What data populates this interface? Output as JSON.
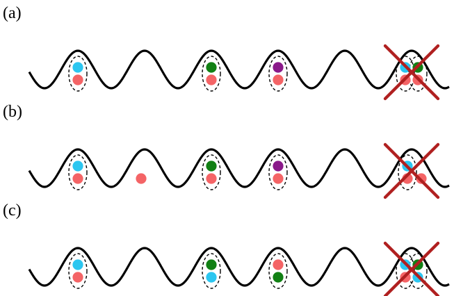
{
  "colors": {
    "cyan": "#2cc6f0",
    "salmon": "#f46466",
    "green": "#118014",
    "purple": "#8a1a8a",
    "wave": "#000000",
    "cross": "#b02020"
  },
  "panels": [
    {
      "label": "(a)",
      "groups": [
        {
          "well": 1,
          "enclosed": true,
          "atoms": [
            "cyan",
            "salmon"
          ]
        },
        {
          "well": 3,
          "enclosed": true,
          "atoms": [
            "green",
            "salmon"
          ]
        },
        {
          "well": 4,
          "enclosed": true,
          "atoms": [
            "purple",
            "salmon"
          ]
        },
        {
          "well": 6,
          "enclosed": true,
          "crossed": true,
          "overlap": true,
          "atoms": [
            "cyan",
            "salmon",
            "green",
            "salmon"
          ]
        }
      ]
    },
    {
      "label": "(b)",
      "groups": [
        {
          "well": 1,
          "enclosed": true,
          "atoms": [
            "cyan",
            "salmon"
          ]
        },
        {
          "well": 2,
          "enclosed": false,
          "atoms": [
            "salmon"
          ]
        },
        {
          "well": 3,
          "enclosed": true,
          "atoms": [
            "green",
            "salmon"
          ]
        },
        {
          "well": 4,
          "enclosed": true,
          "atoms": [
            "purple",
            "salmon"
          ]
        },
        {
          "well": 6,
          "enclosed": true,
          "crossed": true,
          "overlap": false,
          "atoms": [
            "cyan",
            "salmon",
            "salmon"
          ]
        }
      ]
    },
    {
      "label": "(c)",
      "groups": [
        {
          "well": 1,
          "enclosed": true,
          "atoms": [
            "cyan",
            "salmon"
          ]
        },
        {
          "well": 3,
          "enclosed": true,
          "atoms": [
            "green",
            "cyan"
          ]
        },
        {
          "well": 4,
          "enclosed": true,
          "atoms": [
            "salmon",
            "green"
          ]
        },
        {
          "well": 6,
          "enclosed": true,
          "crossed": true,
          "overlap": true,
          "atoms": [
            "cyan",
            "salmon",
            "green",
            "cyan"
          ]
        }
      ]
    }
  ]
}
